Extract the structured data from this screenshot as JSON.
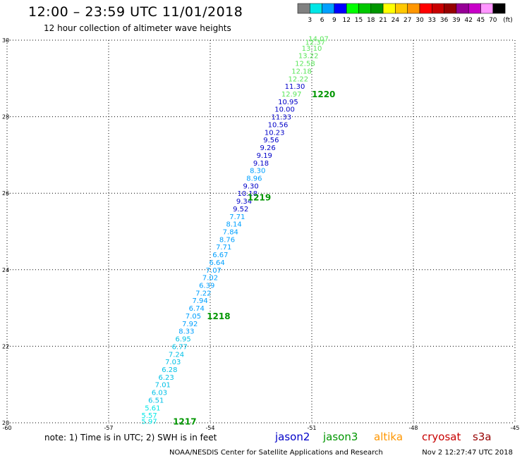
{
  "header": {
    "title": "12:00 – 23:59 UTC 11/01/2018",
    "subtitle": "12 hour collection of altimeter wave heights"
  },
  "legend_scale": {
    "colors": [
      "#808080",
      "#00e6e6",
      "#00a0ff",
      "#0000ff",
      "#00ff00",
      "#00c800",
      "#009600",
      "#ffff00",
      "#ffc800",
      "#ff9600",
      "#ff0000",
      "#c80000",
      "#960000",
      "#960096",
      "#c800c8",
      "#ff96ff",
      "#000000"
    ],
    "labels": [
      "3",
      "6",
      "9",
      "12",
      "15",
      "18",
      "21",
      "24",
      "27",
      "30",
      "33",
      "36",
      "39",
      "42",
      "45",
      "70"
    ],
    "unit": "(ft)"
  },
  "satellites": [
    {
      "name": "jason2",
      "color": "#0000c8"
    },
    {
      "name": "jason3",
      "color": "#009600"
    },
    {
      "name": "altika",
      "color": "#ff9600"
    },
    {
      "name": "cryosat",
      "color": "#c80000"
    },
    {
      "name": "s3a",
      "color": "#960000"
    }
  ],
  "footer": {
    "note": "note: 1) Time is in UTC; 2) SWH is in feet",
    "credit": "NOAA/NESDIS Center for Satellite Applications and Research",
    "timestamp": "Nov  2 12:27:47 UTC 2018"
  },
  "chart_data": {
    "type": "scatter",
    "xlim": [
      -60,
      -45
    ],
    "ylim": [
      20,
      30
    ],
    "x_ticks": [
      "-60",
      "-57",
      "-54",
      "-51",
      "-48",
      "-45"
    ],
    "y_ticks": [
      "20",
      "22",
      "24",
      "26",
      "28",
      "30"
    ],
    "grid": true,
    "points": [
      {
        "x": -55.8,
        "y": 20.05,
        "v": "5.97",
        "c": "#00e6e6"
      },
      {
        "x": -55.8,
        "y": 20.2,
        "v": "5.57",
        "c": "#00e6e6"
      },
      {
        "x": -55.7,
        "y": 20.4,
        "v": "5.61",
        "c": "#00e6e6"
      },
      {
        "x": -55.6,
        "y": 20.6,
        "v": "6.51",
        "c": "#00c0e6"
      },
      {
        "x": -55.5,
        "y": 20.8,
        "v": "6.03",
        "c": "#00c0e6"
      },
      {
        "x": -55.4,
        "y": 21.0,
        "v": "7.01",
        "c": "#00c0e6"
      },
      {
        "x": -55.3,
        "y": 21.2,
        "v": "6.23",
        "c": "#00c0e6"
      },
      {
        "x": -55.2,
        "y": 21.4,
        "v": "6.28",
        "c": "#00c0e6"
      },
      {
        "x": -55.1,
        "y": 21.6,
        "v": "7.03",
        "c": "#00c0e6"
      },
      {
        "x": -55.0,
        "y": 21.8,
        "v": "7.24",
        "c": "#00c0e6"
      },
      {
        "x": -54.9,
        "y": 22.0,
        "v": "6.77",
        "c": "#00c0e6"
      },
      {
        "x": -54.8,
        "y": 22.2,
        "v": "6.95",
        "c": "#00c0e6"
      },
      {
        "x": -54.7,
        "y": 22.4,
        "v": "8.33",
        "c": "#00a0ff"
      },
      {
        "x": -54.6,
        "y": 22.6,
        "v": "7.92",
        "c": "#00a0ff"
      },
      {
        "x": -54.5,
        "y": 22.8,
        "v": "7.05",
        "c": "#00a0ff"
      },
      {
        "x": -54.4,
        "y": 23.0,
        "v": "6.74",
        "c": "#00a0ff"
      },
      {
        "x": -54.3,
        "y": 23.2,
        "v": "7.94",
        "c": "#00a0ff"
      },
      {
        "x": -54.2,
        "y": 23.4,
        "v": "7.22",
        "c": "#00a0ff"
      },
      {
        "x": -54.1,
        "y": 23.6,
        "v": "6.39",
        "c": "#00a0ff"
      },
      {
        "x": -54.0,
        "y": 23.8,
        "v": "7.02",
        "c": "#00a0ff"
      },
      {
        "x": -53.9,
        "y": 24.0,
        "v": "7.07",
        "c": "#00a0ff"
      },
      {
        "x": -53.8,
        "y": 24.2,
        "v": "6.64",
        "c": "#00a0ff"
      },
      {
        "x": -53.7,
        "y": 24.4,
        "v": "6.67",
        "c": "#00a0ff"
      },
      {
        "x": -53.6,
        "y": 24.6,
        "v": "7.71",
        "c": "#00a0ff"
      },
      {
        "x": -53.5,
        "y": 24.8,
        "v": "8.76",
        "c": "#00a0ff"
      },
      {
        "x": -53.4,
        "y": 25.0,
        "v": "7.84",
        "c": "#00a0ff"
      },
      {
        "x": -53.3,
        "y": 25.2,
        "v": "8.14",
        "c": "#00a0ff"
      },
      {
        "x": -53.2,
        "y": 25.4,
        "v": "7.71",
        "c": "#00a0ff"
      },
      {
        "x": -53.1,
        "y": 25.6,
        "v": "9.52",
        "c": "#0000c8"
      },
      {
        "x": -53.0,
        "y": 25.8,
        "v": "9.34",
        "c": "#0000c8"
      },
      {
        "x": -52.9,
        "y": 26.0,
        "v": "10.18",
        "c": "#0000c8"
      },
      {
        "x": -52.8,
        "y": 26.2,
        "v": "9.30",
        "c": "#0000c8"
      },
      {
        "x": -52.7,
        "y": 26.4,
        "v": "8.96",
        "c": "#00a0ff"
      },
      {
        "x": -52.6,
        "y": 26.6,
        "v": "8.30",
        "c": "#00a0ff"
      },
      {
        "x": -52.5,
        "y": 26.8,
        "v": "9.18",
        "c": "#0000c8"
      },
      {
        "x": -52.4,
        "y": 27.0,
        "v": "9.19",
        "c": "#0000c8"
      },
      {
        "x": -52.3,
        "y": 27.2,
        "v": "9.26",
        "c": "#0000c8"
      },
      {
        "x": -52.2,
        "y": 27.4,
        "v": "9.56",
        "c": "#0000c8"
      },
      {
        "x": -52.1,
        "y": 27.6,
        "v": "10.23",
        "c": "#0000c8"
      },
      {
        "x": -52.0,
        "y": 27.8,
        "v": "10.56",
        "c": "#0000c8"
      },
      {
        "x": -51.9,
        "y": 28.0,
        "v": "11.33",
        "c": "#0000c8"
      },
      {
        "x": -51.8,
        "y": 28.2,
        "v": "10.00",
        "c": "#0000c8"
      },
      {
        "x": -51.7,
        "y": 28.4,
        "v": "10.95",
        "c": "#0000c8"
      },
      {
        "x": -51.6,
        "y": 28.6,
        "v": "12.97",
        "c": "#5ae65a"
      },
      {
        "x": -51.5,
        "y": 28.8,
        "v": "11.30",
        "c": "#0000c8"
      },
      {
        "x": -51.4,
        "y": 29.0,
        "v": "12.22",
        "c": "#5ae65a"
      },
      {
        "x": -51.3,
        "y": 29.2,
        "v": "12.18",
        "c": "#5ae65a"
      },
      {
        "x": -51.2,
        "y": 29.4,
        "v": "12.58",
        "c": "#5ae65a"
      },
      {
        "x": -51.1,
        "y": 29.6,
        "v": "13.22",
        "c": "#5ae65a"
      },
      {
        "x": -51.0,
        "y": 29.8,
        "v": "13.10",
        "c": "#5ae65a"
      },
      {
        "x": -50.9,
        "y": 29.95,
        "v": "12.37",
        "c": "#5ae65a"
      },
      {
        "x": -50.8,
        "y": 30.05,
        "v": "14.07",
        "c": "#5ae65a"
      }
    ],
    "time_labels": [
      {
        "x": -55.1,
        "y": 20.05,
        "text": "1217",
        "c": "#009600"
      },
      {
        "x": -54.1,
        "y": 22.8,
        "text": "1218",
        "c": "#009600"
      },
      {
        "x": -52.9,
        "y": 25.9,
        "text": "1219",
        "c": "#009600"
      },
      {
        "x": -51.0,
        "y": 28.6,
        "text": "1220",
        "c": "#009600"
      }
    ]
  }
}
